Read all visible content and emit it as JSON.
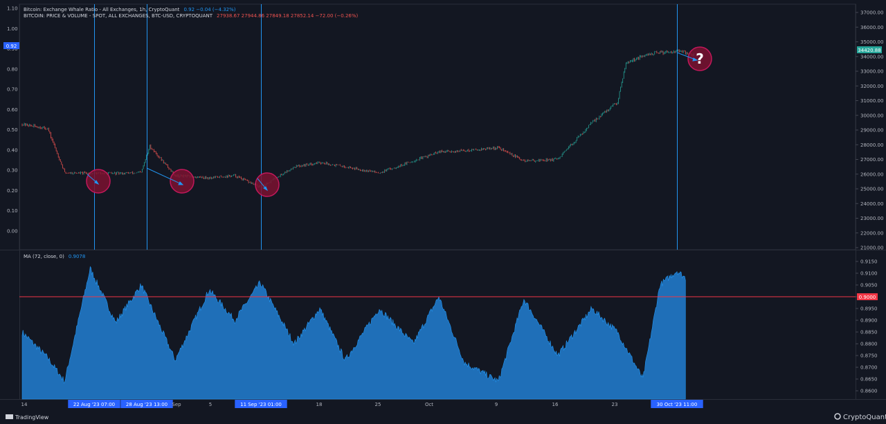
{
  "legend": {
    "line1_title": "Bitcoin: Exchange Whale Ratio - All Exchanges, 1h, CryptoQuant",
    "line1_values": "0.92  −0.04 (−4.32%)",
    "line2_title": "BITCOIN: PRICE & VOLUME - SPOT, ALL EXCHANGES, BTC-USD, CRYPTOQUANT",
    "line2_values": "27938.67  27944.86  27849.18  27852.14  −72.00 (−0.26%)",
    "ma_title": "MA (72, close, 0)",
    "ma_value": "0.9078"
  },
  "badges": {
    "ratio_current": "0.92",
    "price_current": "34420.88",
    "ma_threshold": "0.9000",
    "question_mark": "?"
  },
  "branding": {
    "tradingview": "TradingView",
    "cryptoquant": "CryptoQuant"
  },
  "colors": {
    "background": "#131722",
    "up_candle": "#26a69a",
    "down_candle": "#ef5350",
    "ma_area": "#2962ff",
    "ma_area_fill": "#1f6fb8",
    "threshold_line": "#f23645",
    "vertical_marker": "#2196f3",
    "circle_fill": "#7b1230",
    "price_badge": "#26a69a",
    "ratio_badge": "#2962ff"
  },
  "axes": {
    "left_ticks": [
      "1.10",
      "1.00",
      "0.90",
      "0.80",
      "0.70",
      "0.60",
      "0.50",
      "0.40",
      "0.30",
      "0.20",
      "0.10",
      "0.00"
    ],
    "right_price_ticks": [
      "37000.00",
      "36000.00",
      "35000.00",
      "34000.00",
      "33000.00",
      "32000.00",
      "31000.00",
      "30000.00",
      "29000.00",
      "28000.00",
      "27000.00",
      "26000.00",
      "25000.00",
      "24000.00",
      "23000.00",
      "22000.00",
      "21000.00"
    ],
    "right_ma_ticks": [
      "0.9150",
      "0.9100",
      "0.9050",
      "0.9000",
      "0.8950",
      "0.8900",
      "0.8850",
      "0.8800",
      "0.8750",
      "0.8700",
      "0.8650",
      "0.8600"
    ],
    "x_ticks": [
      "14",
      "22 Aug '23  07:00",
      "28 Aug '23  13:00",
      "Sep",
      "5",
      "11 Sep '23  01:00",
      "18",
      "25",
      "Oct",
      "9",
      "16",
      "23",
      "30 Oct '23  11:00"
    ]
  },
  "chart_data": [
    {
      "type": "line",
      "series": [
        {
          "name": "BITCOIN: PRICE & VOLUME - SPOT, ALL EXCHANGES, BTC-USD, CRYPTOQUANT"
        }
      ],
      "x": [
        "Aug 14",
        "Aug 17",
        "Aug 19",
        "Aug 22",
        "Aug 25",
        "Aug 28",
        "Aug 29",
        "Sep 1",
        "Sep 5",
        "Sep 8",
        "Sep 11",
        "Sep 15",
        "Sep 18",
        "Sep 21",
        "Sep 25",
        "Sep 29",
        "Oct 2",
        "Oct 5",
        "Oct 9",
        "Oct 12",
        "Oct 16",
        "Oct 20",
        "Oct 23",
        "Oct 24",
        "Oct 27",
        "Oct 30",
        "Nov 1"
      ],
      "values": [
        29400,
        29100,
        26100,
        26050,
        26050,
        26100,
        27900,
        25900,
        25750,
        25900,
        25100,
        26500,
        26800,
        26500,
        26100,
        26900,
        27500,
        27600,
        27800,
        26900,
        27000,
        29500,
        30900,
        33600,
        34200,
        34400,
        34100
      ],
      "ylim": [
        21000,
        37000
      ]
    },
    {
      "type": "area",
      "series": [
        {
          "name": "MA (72, close, 0)"
        }
      ],
      "x": [
        "Aug 14",
        "Aug 17",
        "Aug 19",
        "Aug 22",
        "Aug 25",
        "Aug 28",
        "Sep 1",
        "Sep 5",
        "Sep 8",
        "Sep 11",
        "Sep 15",
        "Sep 18",
        "Sep 21",
        "Sep 25",
        "Sep 29",
        "Oct 2",
        "Oct 5",
        "Oct 9",
        "Oct 12",
        "Oct 16",
        "Oct 20",
        "Oct 23",
        "Oct 26",
        "Oct 28",
        "Oct 30",
        "Oct 31"
      ],
      "values": [
        0.885,
        0.874,
        0.864,
        0.912,
        0.889,
        0.905,
        0.873,
        0.903,
        0.89,
        0.906,
        0.88,
        0.895,
        0.873,
        0.895,
        0.88,
        0.9,
        0.872,
        0.864,
        0.899,
        0.875,
        0.895,
        0.885,
        0.865,
        0.905,
        0.911,
        0.908
      ],
      "threshold": 0.9,
      "ylim": [
        0.855,
        0.918
      ]
    }
  ],
  "annotations": {
    "vertical_markers": [
      "22 Aug '23  07:00",
      "28 Aug '23  13:00",
      "11 Sep '23  01:00",
      "30 Oct '23  11:00"
    ]
  }
}
